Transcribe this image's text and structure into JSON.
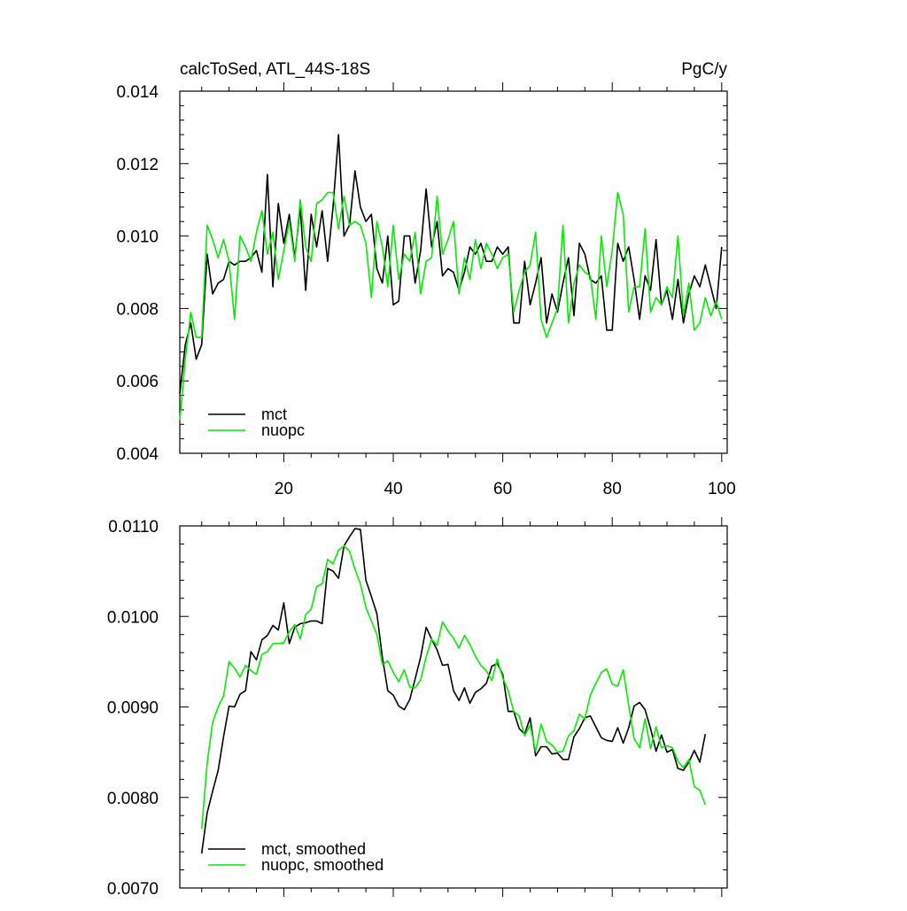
{
  "colors": {
    "mct": "#000000",
    "nuopc": "#00ee00",
    "frame": "#000000",
    "background": "#ffffff"
  },
  "chart_data": [
    {
      "type": "line",
      "title_left": "calcToSed, ATL_44S-18S",
      "title_right": "PgC/y",
      "xlabel": "",
      "ylabel": "",
      "xlim": [
        1,
        101
      ],
      "ylim": [
        0.004,
        0.014
      ],
      "x_ticks": [
        20,
        40,
        60,
        80,
        100
      ],
      "x_tick_labels": [
        "20",
        "40",
        "60",
        "80",
        "100"
      ],
      "y_ticks": [
        0.004,
        0.006,
        0.008,
        0.01,
        0.012,
        0.014
      ],
      "y_tick_labels": [
        "0.004",
        "0.006",
        "0.008",
        "0.010",
        "0.012",
        "0.014"
      ],
      "grid": false,
      "legend_position": "bottom-left",
      "x_start": 1,
      "series": [
        {
          "name": "mct",
          "color": "#000000",
          "values": [
            0.00565,
            0.007,
            0.0076,
            0.0066,
            0.007,
            0.0095,
            0.0084,
            0.0087,
            0.0088,
            0.0093,
            0.0092,
            0.0093,
            0.0093,
            0.0094,
            0.0096,
            0.009,
            0.0117,
            0.0086,
            0.0109,
            0.0098,
            0.0106,
            0.0094,
            0.0108,
            0.0085,
            0.0106,
            0.0097,
            0.0107,
            0.0093,
            0.0108,
            0.0128,
            0.01,
            0.0103,
            0.0118,
            0.0108,
            0.0104,
            0.0106,
            0.0091,
            0.0087,
            0.01,
            0.0081,
            0.0082,
            0.01,
            0.01,
            0.0087,
            0.0096,
            0.0113,
            0.0097,
            0.0104,
            0.0089,
            0.0091,
            0.009,
            0.0085,
            0.009,
            0.0097,
            0.0095,
            0.0098,
            0.0093,
            0.0093,
            0.0097,
            0.0095,
            0.0097,
            0.0076,
            0.0076,
            0.0093,
            0.0081,
            0.0087,
            0.0094,
            0.0076,
            0.0084,
            0.0079,
            0.0087,
            0.0094,
            0.0078,
            0.0098,
            0.0095,
            0.0088,
            0.0087,
            0.0089,
            0.0074,
            0.0074,
            0.0098,
            0.0093,
            0.0097,
            0.0088,
            0.0077,
            0.0089,
            0.0085,
            0.0099,
            0.0081,
            0.0085,
            0.0077,
            0.0088,
            0.0076,
            0.0084,
            0.0089,
            0.0086,
            0.0092,
            0.0086,
            0.008,
            0.0097
          ]
        },
        {
          "name": "nuopc",
          "color": "#00ee00",
          "values": [
            0.0049,
            0.0066,
            0.0079,
            0.0072,
            0.0072,
            0.0103,
            0.0099,
            0.0094,
            0.0099,
            0.0093,
            0.0077,
            0.01,
            0.0097,
            0.0093,
            0.0101,
            0.0107,
            0.0095,
            0.0101,
            0.0088,
            0.0096,
            0.0104,
            0.0093,
            0.011,
            0.0097,
            0.0093,
            0.0109,
            0.011,
            0.0112,
            0.0112,
            0.0102,
            0.0111,
            0.0103,
            0.0104,
            0.0103,
            0.0098,
            0.0083,
            0.0104,
            0.0097,
            0.0086,
            0.0103,
            0.0088,
            0.0095,
            0.0093,
            0.0101,
            0.0084,
            0.0093,
            0.0094,
            0.0111,
            0.0095,
            0.0099,
            0.0104,
            0.0084,
            0.0094,
            0.0088,
            0.0099,
            0.0091,
            0.0098,
            0.0095,
            0.0091,
            0.0094,
            0.0095,
            0.0079,
            0.0085,
            0.009,
            0.0092,
            0.0101,
            0.0077,
            0.0072,
            0.0076,
            0.008,
            0.0103,
            0.0076,
            0.0087,
            0.0092,
            0.009,
            0.0089,
            0.0077,
            0.01,
            0.0086,
            0.0096,
            0.0112,
            0.0106,
            0.0079,
            0.0086,
            0.0086,
            0.0102,
            0.0079,
            0.0083,
            0.0081,
            0.0086,
            0.0083,
            0.01,
            0.0078,
            0.0087,
            0.0074,
            0.0076,
            0.0083,
            0.0078,
            0.0082,
            0.0077
          ]
        }
      ]
    },
    {
      "type": "line",
      "title_left": "",
      "title_right": "",
      "xlabel": "",
      "ylabel": "",
      "xlim": [
        1,
        101
      ],
      "ylim": [
        0.007,
        0.011
      ],
      "x_ticks": [
        20,
        40,
        60,
        80,
        100
      ],
      "x_tick_labels": [],
      "y_ticks": [
        0.007,
        0.008,
        0.009,
        0.01,
        0.011
      ],
      "y_tick_labels": [
        "0.0070",
        "0.0080",
        "0.0090",
        "0.0100",
        "0.0110"
      ],
      "grid": false,
      "legend_position": "bottom-left",
      "x_start": 5,
      "series": [
        {
          "name": "mct, smoothed",
          "color": "#000000",
          "values": [
            0.00738,
            0.00783,
            0.00807,
            0.0083,
            0.00867,
            0.00901,
            0.009,
            0.00914,
            0.00918,
            0.00961,
            0.00952,
            0.00974,
            0.00979,
            0.0099,
            0.00985,
            0.01015,
            0.0097,
            0.00988,
            0.00992,
            0.00993,
            0.00995,
            0.00995,
            0.00992,
            0.01053,
            0.0105,
            0.01042,
            0.01078,
            0.01088,
            0.01097,
            0.01096,
            0.0104,
            0.01022,
            0.01003,
            0.00955,
            0.00918,
            0.00913,
            0.00901,
            0.00897,
            0.00908,
            0.00931,
            0.00955,
            0.00988,
            0.00975,
            0.00963,
            0.00946,
            0.00947,
            0.00918,
            0.00907,
            0.00921,
            0.00904,
            0.00916,
            0.0092,
            0.00926,
            0.00945,
            0.00948,
            0.00936,
            0.00895,
            0.00895,
            0.00876,
            0.0087,
            0.00888,
            0.00846,
            0.00856,
            0.00856,
            0.00848,
            0.00849,
            0.00842,
            0.00842,
            0.00867,
            0.00876,
            0.00888,
            0.0089,
            0.00878,
            0.00866,
            0.00863,
            0.00862,
            0.00877,
            0.0086,
            0.00877,
            0.00901,
            0.00905,
            0.00897,
            0.00876,
            0.00851,
            0.00869,
            0.0085,
            0.00853,
            0.00832,
            0.0083,
            0.00839,
            0.00852,
            0.00839,
            0.0087
          ]
        },
        {
          "name": "nuopc, smoothed",
          "color": "#00ee00",
          "values": [
            0.00765,
            0.00838,
            0.00883,
            0.009,
            0.00912,
            0.0095,
            0.00943,
            0.00933,
            0.00946,
            0.0094,
            0.00936,
            0.00958,
            0.00961,
            0.0097,
            0.0097,
            0.00971,
            0.00983,
            0.00991,
            0.00975,
            0.01002,
            0.01008,
            0.01033,
            0.01036,
            0.01063,
            0.01058,
            0.01073,
            0.01078,
            0.01072,
            0.01052,
            0.01036,
            0.0101,
            0.00995,
            0.0098,
            0.00947,
            0.00951,
            0.00938,
            0.00928,
            0.00941,
            0.00922,
            0.00921,
            0.0093,
            0.00955,
            0.00975,
            0.00968,
            0.00994,
            0.00984,
            0.00976,
            0.00965,
            0.00979,
            0.00969,
            0.00956,
            0.00946,
            0.0094,
            0.00929,
            0.00953,
            0.00932,
            0.00918,
            0.00895,
            0.0089,
            0.00868,
            0.0088,
            0.00851,
            0.00881,
            0.00862,
            0.00858,
            0.0085,
            0.00851,
            0.00868,
            0.00874,
            0.00892,
            0.00887,
            0.00913,
            0.00926,
            0.00938,
            0.00942,
            0.00925,
            0.00923,
            0.00941,
            0.00902,
            0.00865,
            0.00855,
            0.00887,
            0.00854,
            0.00878,
            0.00855,
            0.00857,
            0.00855,
            0.0084,
            0.00833,
            0.00842,
            0.00812,
            0.00808,
            0.00792
          ]
        }
      ]
    }
  ]
}
